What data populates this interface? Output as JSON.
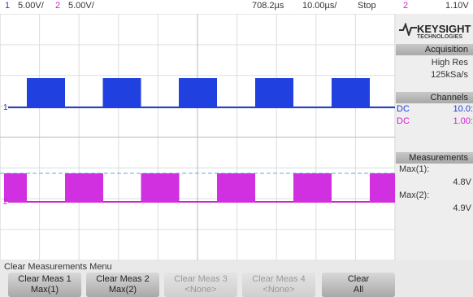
{
  "top_bar": {
    "ch1_label": "1",
    "ch1_scale": "5.00V/",
    "ch2_label": "2",
    "ch2_scale": "5.00V/",
    "time_delay": "708.2µs",
    "time_scale": "10.00µs/",
    "run_state": "Stop",
    "trigger_source": "2",
    "trigger_level": "1.10V"
  },
  "brand": {
    "name": "KEYSIGHT",
    "sub": "TECHNOLOGIES"
  },
  "acquisition": {
    "title": "Acquisition",
    "mode": "High Res",
    "rate": "125kSa/s"
  },
  "channels": {
    "title": "Channels",
    "rows": [
      [
        "DC",
        "10.0:"
      ],
      [
        "DC",
        "1.00:"
      ]
    ]
  },
  "measurements": {
    "title": "Measurements",
    "items": [
      {
        "label": "Max(1):",
        "value": "4.8V"
      },
      {
        "label": "Max(2):",
        "value": "4.9V"
      }
    ]
  },
  "menu": {
    "title": "Clear Measurements Menu",
    "buttons": [
      [
        "Clear Meas 1",
        "Max(1)"
      ],
      [
        "Clear Meas 2",
        "Max(2)"
      ],
      [
        "Clear Meas 3",
        "<None>"
      ],
      [
        "Clear Meas 4",
        "<None>"
      ],
      [
        "Clear",
        "All"
      ]
    ]
  },
  "markers": {
    "ch1": "1",
    "ch2": "2"
  }
}
